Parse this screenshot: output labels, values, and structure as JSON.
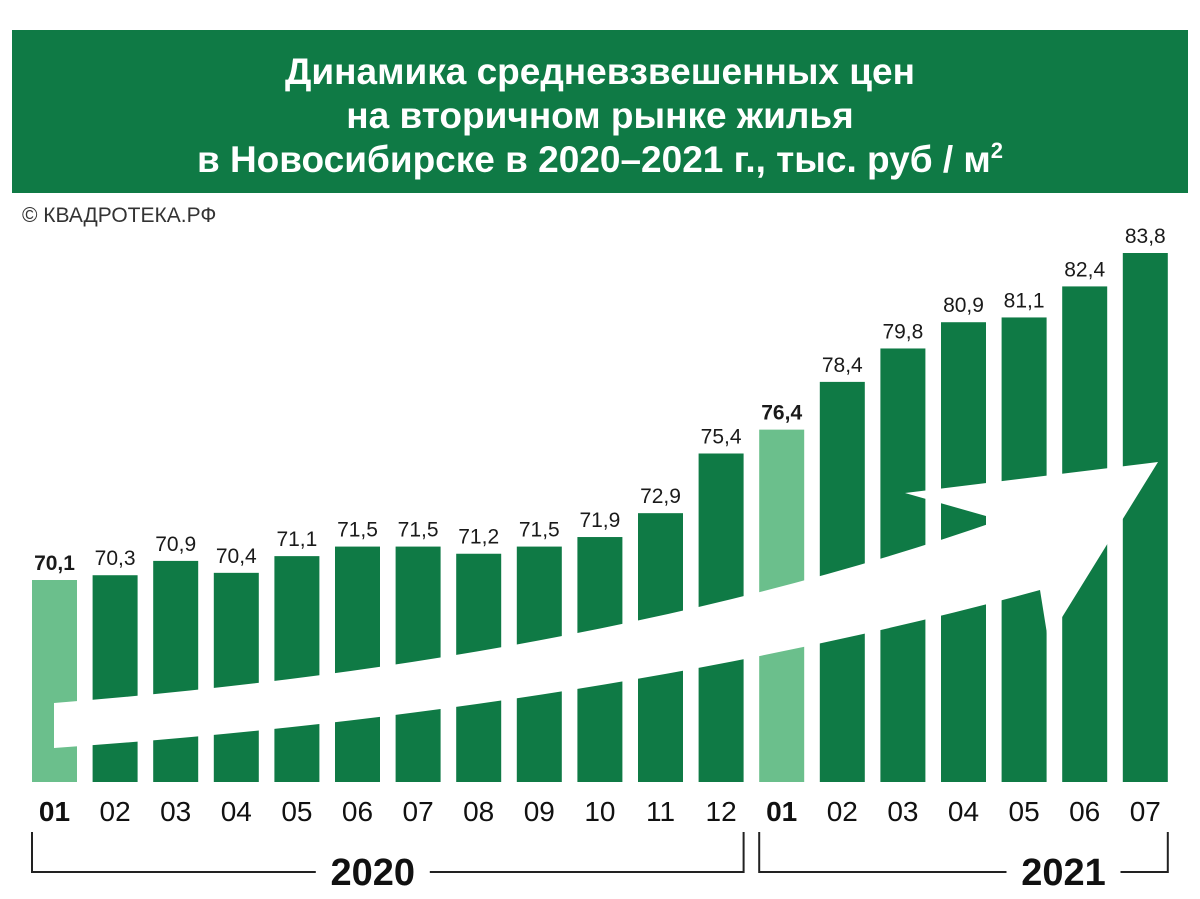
{
  "header": {
    "title_line1": "Динамика средневзвешенных цен",
    "title_line2": "на вторичном рынке жилья",
    "title_line3": "в Новосибирске в 2020–2021 г., тыс. руб / м",
    "title_sup": "2",
    "source": "© КВАДРОТЕКА.РФ"
  },
  "colors": {
    "bar": "#0f7a45",
    "highlight": "#6bbf8c",
    "banner": "#0f7a45",
    "arrow": "#ffffff"
  },
  "chart_data": {
    "type": "bar",
    "title": "Динамика средневзвешенных цен на вторичном рынке жилья в Новосибирске в 2020–2021 г., тыс. руб / м2",
    "categories": [
      "01",
      "02",
      "03",
      "04",
      "05",
      "06",
      "07",
      "08",
      "09",
      "10",
      "11",
      "12",
      "01",
      "02",
      "03",
      "04",
      "05",
      "06",
      "07"
    ],
    "values": [
      70.1,
      70.3,
      70.9,
      70.4,
      71.1,
      71.5,
      71.5,
      71.2,
      71.5,
      71.9,
      72.9,
      75.4,
      76.4,
      78.4,
      79.8,
      80.9,
      81.1,
      82.4,
      83.8
    ],
    "value_labels": [
      "70,1",
      "70,3",
      "70,9",
      "70,4",
      "71,1",
      "71,5",
      "71,5",
      "71,2",
      "71,5",
      "71,9",
      "72,9",
      "75,4",
      "76,4",
      "78,4",
      "79,8",
      "80,9",
      "81,1",
      "82,4",
      "83,8"
    ],
    "highlighted": [
      0,
      12
    ],
    "groups": [
      {
        "label": "2020",
        "start": 0,
        "end": 11
      },
      {
        "label": "2021",
        "start": 12,
        "end": 18
      }
    ],
    "xlabel": "",
    "ylabel": "",
    "grid": false,
    "legend": "none"
  }
}
